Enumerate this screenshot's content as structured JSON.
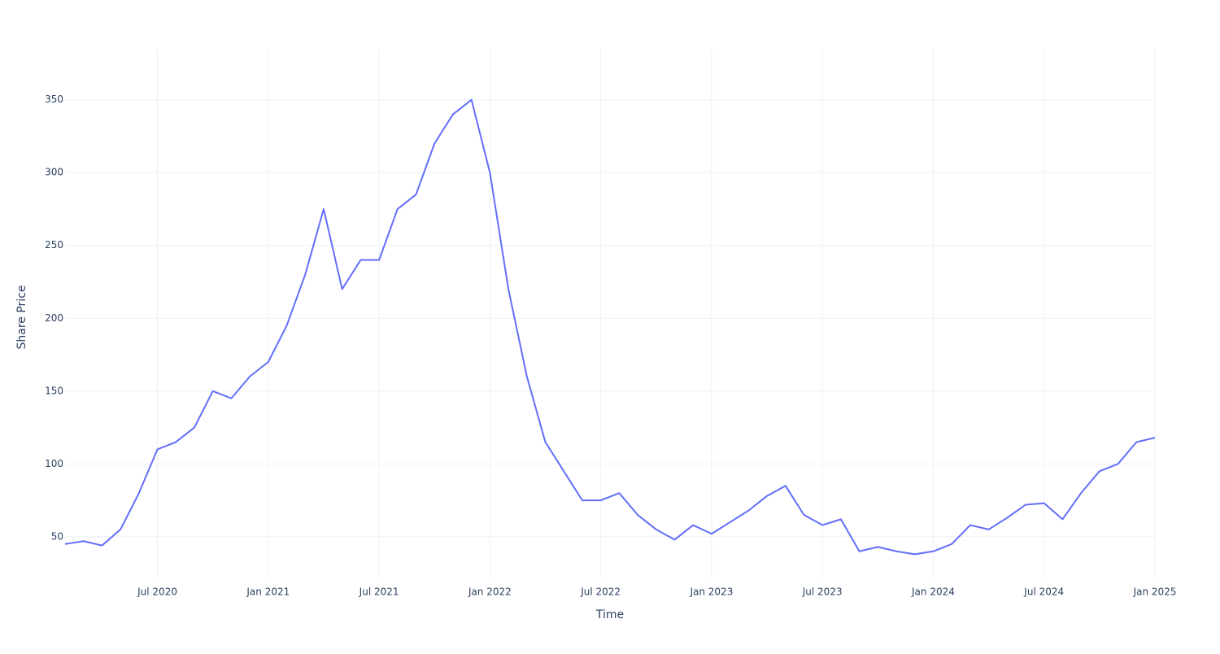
{
  "chart_data": {
    "type": "line",
    "xlabel": "Time",
    "ylabel": "Share Price",
    "x": [
      "2020-02",
      "2020-03",
      "2020-04",
      "2020-05",
      "2020-06",
      "2020-07",
      "2020-08",
      "2020-09",
      "2020-10",
      "2020-11",
      "2020-12",
      "2021-01",
      "2021-02",
      "2021-03",
      "2021-04",
      "2021-05",
      "2021-06",
      "2021-07",
      "2021-08",
      "2021-09",
      "2021-10",
      "2021-11",
      "2021-12",
      "2022-01",
      "2022-02",
      "2022-03",
      "2022-04",
      "2022-05",
      "2022-06",
      "2022-07",
      "2022-08",
      "2022-09",
      "2022-10",
      "2022-11",
      "2022-12",
      "2023-01",
      "2023-02",
      "2023-03",
      "2023-04",
      "2023-05",
      "2023-06",
      "2023-07",
      "2023-08",
      "2023-09",
      "2023-10",
      "2023-11",
      "2023-12",
      "2024-01",
      "2024-02",
      "2024-03",
      "2024-04",
      "2024-05",
      "2024-06",
      "2024-07",
      "2024-08",
      "2024-09",
      "2024-10",
      "2024-11",
      "2024-12",
      "2025-01"
    ],
    "values": [
      45,
      47,
      44,
      55,
      80,
      110,
      115,
      125,
      150,
      145,
      160,
      170,
      195,
      230,
      275,
      220,
      240,
      240,
      275,
      285,
      320,
      340,
      350,
      300,
      220,
      160,
      115,
      95,
      75,
      75,
      80,
      65,
      55,
      48,
      58,
      52,
      60,
      68,
      78,
      85,
      65,
      58,
      62,
      40,
      43,
      40,
      38,
      40,
      45,
      58,
      55,
      63,
      72,
      73,
      62,
      80,
      95,
      100,
      115,
      118
    ],
    "color": "#636efa",
    "xlim": [
      "2020-02",
      "2025-01"
    ],
    "xticks": [
      {
        "value": "2020-07",
        "label": "Jul 2020"
      },
      {
        "value": "2021-01",
        "label": "Jan 2021"
      },
      {
        "value": "2021-07",
        "label": "Jul 2021"
      },
      {
        "value": "2022-01",
        "label": "Jan 2022"
      },
      {
        "value": "2022-07",
        "label": "Jul 2022"
      },
      {
        "value": "2023-01",
        "label": "Jan 2023"
      },
      {
        "value": "2023-07",
        "label": "Jul 2023"
      },
      {
        "value": "2024-01",
        "label": "Jan 2024"
      },
      {
        "value": "2024-07",
        "label": "Jul 2024"
      },
      {
        "value": "2025-01",
        "label": "Jan 2025"
      }
    ],
    "ylim": [
      22,
      385
    ],
    "yticks": [
      50,
      100,
      150,
      200,
      250,
      300,
      350
    ],
    "grid": true
  }
}
